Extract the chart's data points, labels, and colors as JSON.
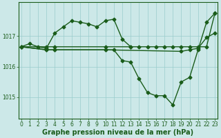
{
  "xlabel": "Graphe pression niveau de la mer (hPa)",
  "bg_color": "#cce8e8",
  "grid_color": "#99cccc",
  "line_color": "#1a5c1a",
  "ylim": [
    1014.3,
    1018.1
  ],
  "xlim": [
    -0.3,
    23.3
  ],
  "yticks": [
    1015,
    1016,
    1017
  ],
  "xticks": [
    0,
    1,
    2,
    3,
    4,
    5,
    6,
    7,
    8,
    9,
    10,
    11,
    12,
    13,
    14,
    15,
    16,
    17,
    18,
    19,
    20,
    21,
    22,
    23
  ],
  "series": [
    {
      "x": [
        0,
        1,
        2,
        3,
        4,
        5,
        6,
        7,
        8,
        9,
        10,
        11,
        12,
        13
      ],
      "y": [
        1016.65,
        1016.75,
        1016.65,
        1016.6,
        1017.1,
        1017.3,
        1017.5,
        1017.45,
        1017.4,
        1017.3,
        1017.5,
        1017.55,
        1016.9,
        1016.65
      ]
    },
    {
      "x": [
        0,
        3,
        4,
        10,
        13,
        14,
        15,
        16,
        17,
        18,
        19,
        20,
        21,
        22,
        23
      ],
      "y": [
        1016.65,
        1016.65,
        1016.65,
        1016.65,
        1016.65,
        1016.65,
        1016.65,
        1016.65,
        1016.65,
        1016.65,
        1016.65,
        1016.65,
        1016.65,
        1016.65,
        1017.75
      ]
    },
    {
      "x": [
        0,
        3,
        4,
        10,
        11,
        12,
        13,
        14,
        15,
        16,
        17,
        18,
        19,
        20,
        21,
        22,
        23
      ],
      "y": [
        1016.65,
        1016.55,
        1016.55,
        1016.55,
        1016.55,
        1016.2,
        1016.15,
        1015.6,
        1015.15,
        1015.05,
        1015.05,
        1014.75,
        1015.5,
        1015.65,
        1016.55,
        1017.45,
        1017.75
      ]
    },
    {
      "x": [
        0,
        3,
        4,
        10,
        19,
        20,
        21,
        22,
        23
      ],
      "y": [
        1016.65,
        1016.55,
        1016.55,
        1016.55,
        1016.5,
        1016.55,
        1016.6,
        1016.95,
        1017.1
      ]
    }
  ],
  "marker": "D",
  "markersize": 2.5,
  "linewidth": 1.0,
  "tick_fontsize": 5.5,
  "label_fontsize": 7
}
